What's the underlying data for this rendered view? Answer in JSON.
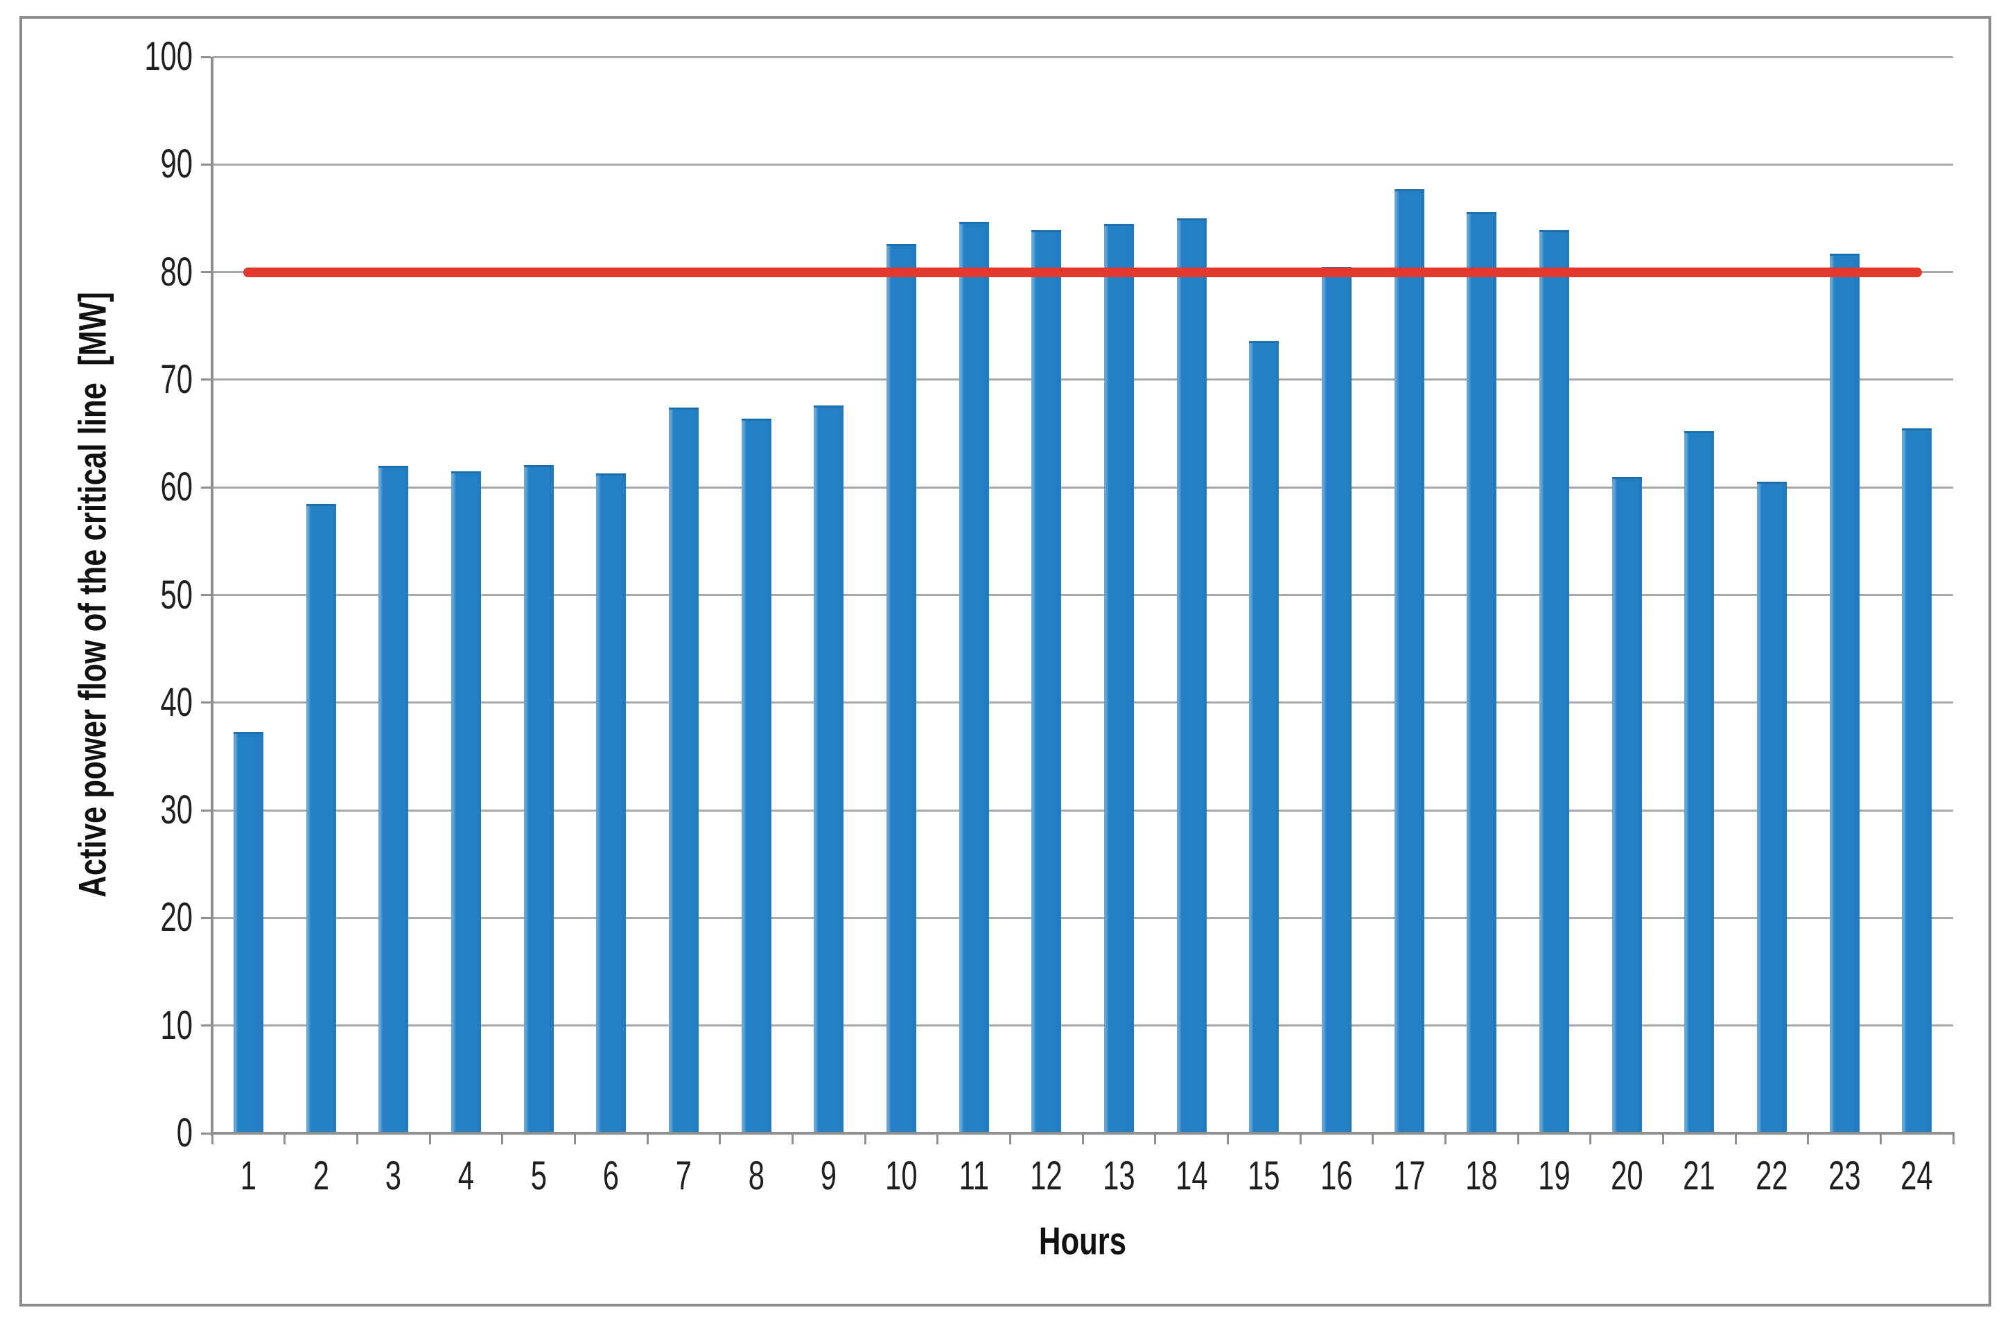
{
  "figure": {
    "background": "#FFFFFF",
    "border_color": "#8C8C8C"
  },
  "chart_data": {
    "type": "bar",
    "title": "",
    "xlabel": "Hours",
    "ylabel": "Active power flow of the critical line  [MW]",
    "categories": [
      "1",
      "2",
      "3",
      "4",
      "5",
      "6",
      "7",
      "8",
      "9",
      "10",
      "11",
      "12",
      "13",
      "14",
      "15",
      "16",
      "17",
      "18",
      "19",
      "20",
      "21",
      "22",
      "23",
      "24"
    ],
    "series": [
      {
        "name": "Active power flow",
        "values": [
          37.3,
          58.5,
          62.0,
          61.5,
          62.1,
          61.3,
          67.4,
          66.4,
          67.6,
          82.6,
          84.7,
          83.9,
          84.5,
          85.0,
          73.6,
          80.5,
          87.7,
          85.6,
          83.9,
          61.0,
          65.2,
          60.5,
          81.7,
          65.5
        ]
      }
    ],
    "ylim": [
      0,
      100
    ],
    "yticks": [
      0,
      10,
      20,
      30,
      40,
      50,
      60,
      70,
      80,
      90,
      100
    ],
    "grid": "horizontal",
    "gridline_color": "#A8A8A8",
    "axis_color": "#8F8F8F",
    "legend": "none",
    "bar_color": "#2380C4",
    "bar_top_edge_color": "#1D6FAE",
    "threshold_line": {
      "value": 80,
      "color": "#E2382E",
      "style": "solid",
      "from_category": "1",
      "to_category": "24"
    }
  }
}
